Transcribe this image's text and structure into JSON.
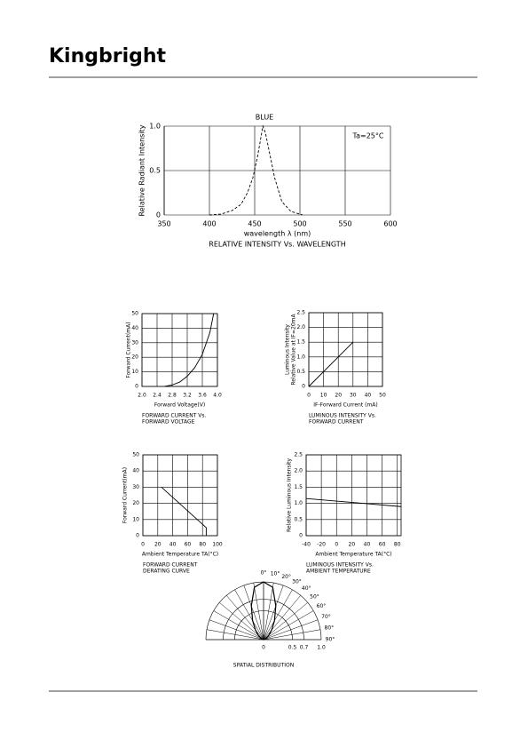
{
  "header": {
    "logo": "Kingbright"
  },
  "chart_data": [
    {
      "type": "line",
      "title": "RELATIVE INTENSITY Vs. WAVELENGTH",
      "xlabel": "wavelength  λ (nm)",
      "ylabel": "Relative Radiant Intensity",
      "annotations": [
        "BLUE",
        "Ta=25°C"
      ],
      "dashed": true,
      "grid": true,
      "x": [
        400,
        413,
        425,
        435,
        442,
        448,
        453,
        457,
        459,
        462,
        466,
        472,
        480,
        490,
        503
      ],
      "values": [
        0,
        0.01,
        0.05,
        0.12,
        0.25,
        0.42,
        0.65,
        0.88,
        1.0,
        0.92,
        0.72,
        0.42,
        0.15,
        0.04,
        0
      ],
      "xlim": [
        350,
        600
      ],
      "xticks": [
        350,
        400,
        450,
        500,
        550,
        600
      ],
      "ylim": [
        0,
        1
      ],
      "yticks": [
        0,
        0.5,
        {
          "value": 1,
          "label": "1.0"
        }
      ]
    },
    {
      "type": "line",
      "title": [
        "FORWARD CURRENT Vs.",
        "FORWARD VOLTAGE"
      ],
      "xlabel": "Forward Voltage(V)",
      "ylabel": "Forward Current(mA)",
      "grid": true,
      "x": [
        2.6,
        2.8,
        3.0,
        3.2,
        3.4,
        3.6,
        3.8,
        3.9
      ],
      "values": [
        0,
        1,
        3,
        7,
        13,
        22,
        37,
        50
      ],
      "xlim": [
        2,
        4
      ],
      "xticks": [
        {
          "value": 2,
          "label": "2.0"
        },
        2.4,
        2.8,
        3.2,
        3.6,
        {
          "value": 4,
          "label": "4.0"
        }
      ],
      "ylim": [
        0,
        50
      ],
      "yticks": [
        0,
        10,
        20,
        30,
        40,
        50
      ]
    },
    {
      "type": "line",
      "title": [
        "LUMINOUS INTENSITY Vs.",
        "FORWARD CURRENT"
      ],
      "xlabel": "IF-Forward Current (mA)",
      "ylabel": [
        "Luminous Intensity",
        "Relative Value at IF=20mA"
      ],
      "grid": true,
      "x": [
        0,
        30
      ],
      "values": [
        0,
        1.5
      ],
      "xlim": [
        0,
        50
      ],
      "xticks": [
        0,
        10,
        20,
        30,
        40,
        50
      ],
      "ylim": [
        0,
        2.5
      ],
      "yticks": [
        0,
        0.5,
        {
          "value": 1,
          "label": "1.0"
        },
        1.5,
        {
          "value": 2,
          "label": "2.0"
        },
        2.5
      ]
    },
    {
      "type": "line",
      "title": [
        "FORWARD CURRENT",
        "DERATING CURVE"
      ],
      "xlabel": "Ambient Temperature TA(°C)",
      "ylabel": "Forward Current(mA)",
      "grid": true,
      "x": [
        25,
        85,
        85
      ],
      "values": [
        30,
        5,
        0
      ],
      "xlim": [
        0,
        100
      ],
      "xticks": [
        0,
        20,
        40,
        60,
        80,
        100
      ],
      "ylim": [
        0,
        50
      ],
      "yticks": [
        0,
        10,
        20,
        30,
        40,
        50
      ]
    },
    {
      "type": "line",
      "title": [
        "LUMINOUS INTENSITY Vs.",
        "AMBIENT TEMPERATURE"
      ],
      "xlabel": "Ambient Temperature TA(°C)",
      "ylabel": "Relative Luminous Intensity",
      "grid": true,
      "x": [
        -40,
        85
      ],
      "values": [
        1.15,
        0.9
      ],
      "xlim": [
        -40,
        85
      ],
      "xticks": [
        -40,
        -20,
        0,
        20,
        40,
        60,
        80
      ],
      "ylim": [
        0,
        2.5
      ],
      "yticks": [
        0,
        0.5,
        {
          "value": 1,
          "label": "1.0"
        },
        1.5,
        {
          "value": 2,
          "label": "2.0"
        },
        2.5
      ]
    },
    {
      "type": "polar",
      "title": "SPATIAL DISTRIBUTION",
      "theta": [
        0,
        10,
        20,
        30,
        40,
        50,
        60,
        70,
        80,
        90
      ],
      "values": [
        1,
        0.92,
        0.62,
        0.38,
        0.22,
        0.12,
        0.06,
        0.03,
        0.01,
        0
      ],
      "thetaticks": [
        {
          "value": 0,
          "label": "0°"
        },
        {
          "value": 10,
          "label": "10°"
        },
        {
          "value": 20,
          "label": "20°"
        },
        {
          "value": 30,
          "label": "30°"
        },
        {
          "value": 40,
          "label": "40°"
        },
        {
          "value": 50,
          "label": "50°"
        },
        {
          "value": 60,
          "label": "60°"
        },
        {
          "value": 70,
          "label": "70°"
        },
        {
          "value": 80,
          "label": "80°"
        },
        {
          "value": 90,
          "label": "90°"
        }
      ],
      "rlim": [
        0,
        1
      ],
      "rticks": [
        0,
        0.5,
        0.7,
        {
          "value": 1,
          "label": "1.0"
        }
      ]
    }
  ]
}
